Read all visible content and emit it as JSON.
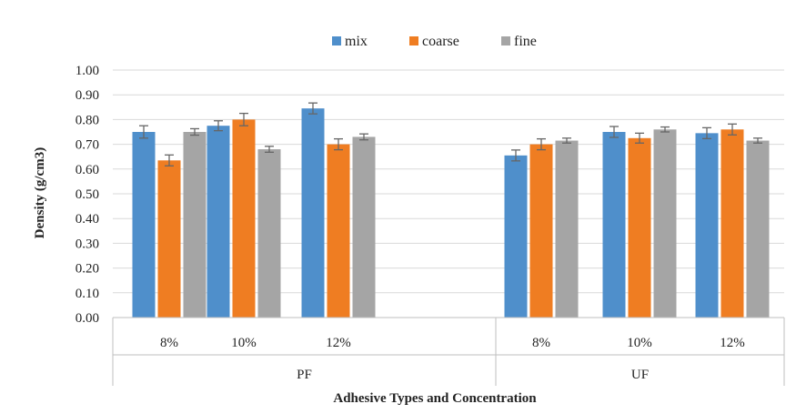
{
  "chart_data": {
    "type": "bar",
    "title": "",
    "xlabel": "Adhesive Types and Concentration",
    "ylabel": "Density (g/cm3)",
    "ylim": [
      0,
      1.0
    ],
    "y_ticks": [
      "0.00",
      "0.10",
      "0.20",
      "0.30",
      "0.40",
      "0.50",
      "0.60",
      "0.70",
      "0.80",
      "0.90",
      "1.00"
    ],
    "grid": true,
    "legend_position": "top-center",
    "groups": [
      {
        "label": "PF",
        "categories": [
          "8%",
          "10%",
          "12%"
        ]
      },
      {
        "label": "UF",
        "categories": [
          "8%",
          "10%",
          "12%"
        ]
      }
    ],
    "series": [
      {
        "name": "mix",
        "color": "#4f8fcb",
        "values": [
          0.75,
          0.775,
          0.845,
          0.655,
          0.75,
          0.745
        ],
        "errors": [
          0.025,
          0.02,
          0.022,
          0.022,
          0.022,
          0.022
        ]
      },
      {
        "name": "coarse",
        "color": "#ef7d22",
        "values": [
          0.635,
          0.8,
          0.7,
          0.7,
          0.725,
          0.76
        ],
        "errors": [
          0.022,
          0.025,
          0.022,
          0.022,
          0.02,
          0.022
        ]
      },
      {
        "name": "fine",
        "color": "#a5a5a5",
        "values": [
          0.75,
          0.68,
          0.73,
          0.715,
          0.76,
          0.715
        ],
        "errors": [
          0.013,
          0.012,
          0.012,
          0.01,
          0.01,
          0.01
        ]
      }
    ]
  }
}
